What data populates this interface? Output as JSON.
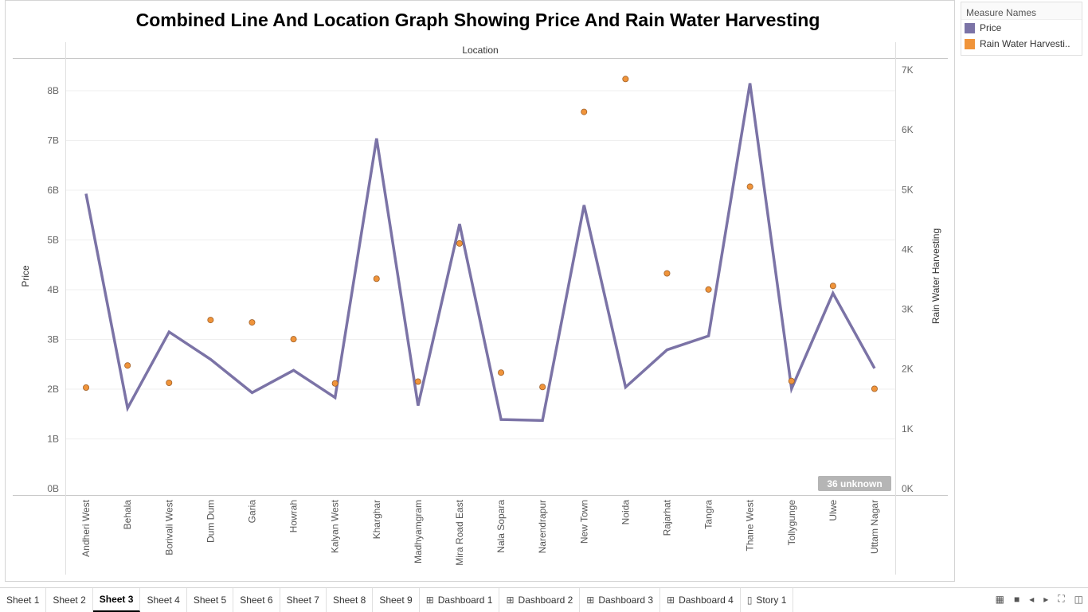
{
  "colors": {
    "price": "#7b73a6",
    "rain": "#f0943a",
    "rain_stroke": "#a0612a",
    "grid": "#efefef"
  },
  "legend": {
    "title": "Measure Names",
    "items": [
      {
        "label": "Price",
        "color": "#7b73a6"
      },
      {
        "label": "Rain Water Harvesti..",
        "color": "#f0943a"
      }
    ]
  },
  "chart_data": {
    "type": "line",
    "title": "Combined Line And Location Graph Showing Price And Rain Water Harvesting",
    "column_header": "Location",
    "ylabel": "Price",
    "y2label": "Rain Water Harvesting",
    "ylim": [
      0,
      8.6
    ],
    "y2lim": [
      0,
      7200
    ],
    "yticks": [
      "0B",
      "1B",
      "2B",
      "3B",
      "4B",
      "5B",
      "6B",
      "7B",
      "8B"
    ],
    "y2ticks": [
      "0K",
      "1K",
      "2K",
      "3K",
      "4K",
      "5K",
      "6K",
      "7K"
    ],
    "categories": [
      "Andheri West",
      "Behala",
      "Borivali West",
      "Dum Dum",
      "Garia",
      "Howrah",
      "Kalyan West",
      "Kharghar",
      "Madhyamgram",
      "Mira Road East",
      "Nala Sopara",
      "Narendrapur",
      "New Town",
      "Noida",
      "Rajarhat",
      "Tangra",
      "Thane West",
      "Tollygunge",
      "Ulwe",
      "Uttam Nagar"
    ],
    "series": [
      {
        "name": "Price",
        "mark": "line",
        "axis": "left",
        "values": [
          5.93,
          1.62,
          3.15,
          2.6,
          1.93,
          2.38,
          1.83,
          7.04,
          1.67,
          5.32,
          1.39,
          1.37,
          5.7,
          2.04,
          2.79,
          3.07,
          8.15,
          2.01,
          3.93,
          2.42
        ]
      },
      {
        "name": "Rain Water Harvesting",
        "mark": "circle",
        "axis": "right",
        "values": [
          1690,
          2060,
          1770,
          2820,
          2780,
          2500,
          1760,
          3510,
          1790,
          4100,
          1940,
          1700,
          6300,
          6850,
          3600,
          3330,
          5050,
          1800,
          3390,
          1670
        ]
      }
    ],
    "annotation": "36 unknown"
  },
  "tabs": [
    {
      "label": "Sheet 1",
      "icon": ""
    },
    {
      "label": "Sheet 2",
      "icon": ""
    },
    {
      "label": "Sheet 3",
      "icon": "",
      "active": true
    },
    {
      "label": "Sheet 4",
      "icon": ""
    },
    {
      "label": "Sheet 5",
      "icon": ""
    },
    {
      "label": "Sheet 6",
      "icon": ""
    },
    {
      "label": "Sheet 7",
      "icon": ""
    },
    {
      "label": "Sheet 8",
      "icon": ""
    },
    {
      "label": "Sheet 9",
      "icon": ""
    },
    {
      "label": "Dashboard 1",
      "icon": "dashboard-icon"
    },
    {
      "label": "Dashboard 2",
      "icon": "dashboard-icon"
    },
    {
      "label": "Dashboard 3",
      "icon": "dashboard-icon"
    },
    {
      "label": "Dashboard 4",
      "icon": "dashboard-icon"
    },
    {
      "label": "Story 1",
      "icon": "story-icon"
    }
  ]
}
